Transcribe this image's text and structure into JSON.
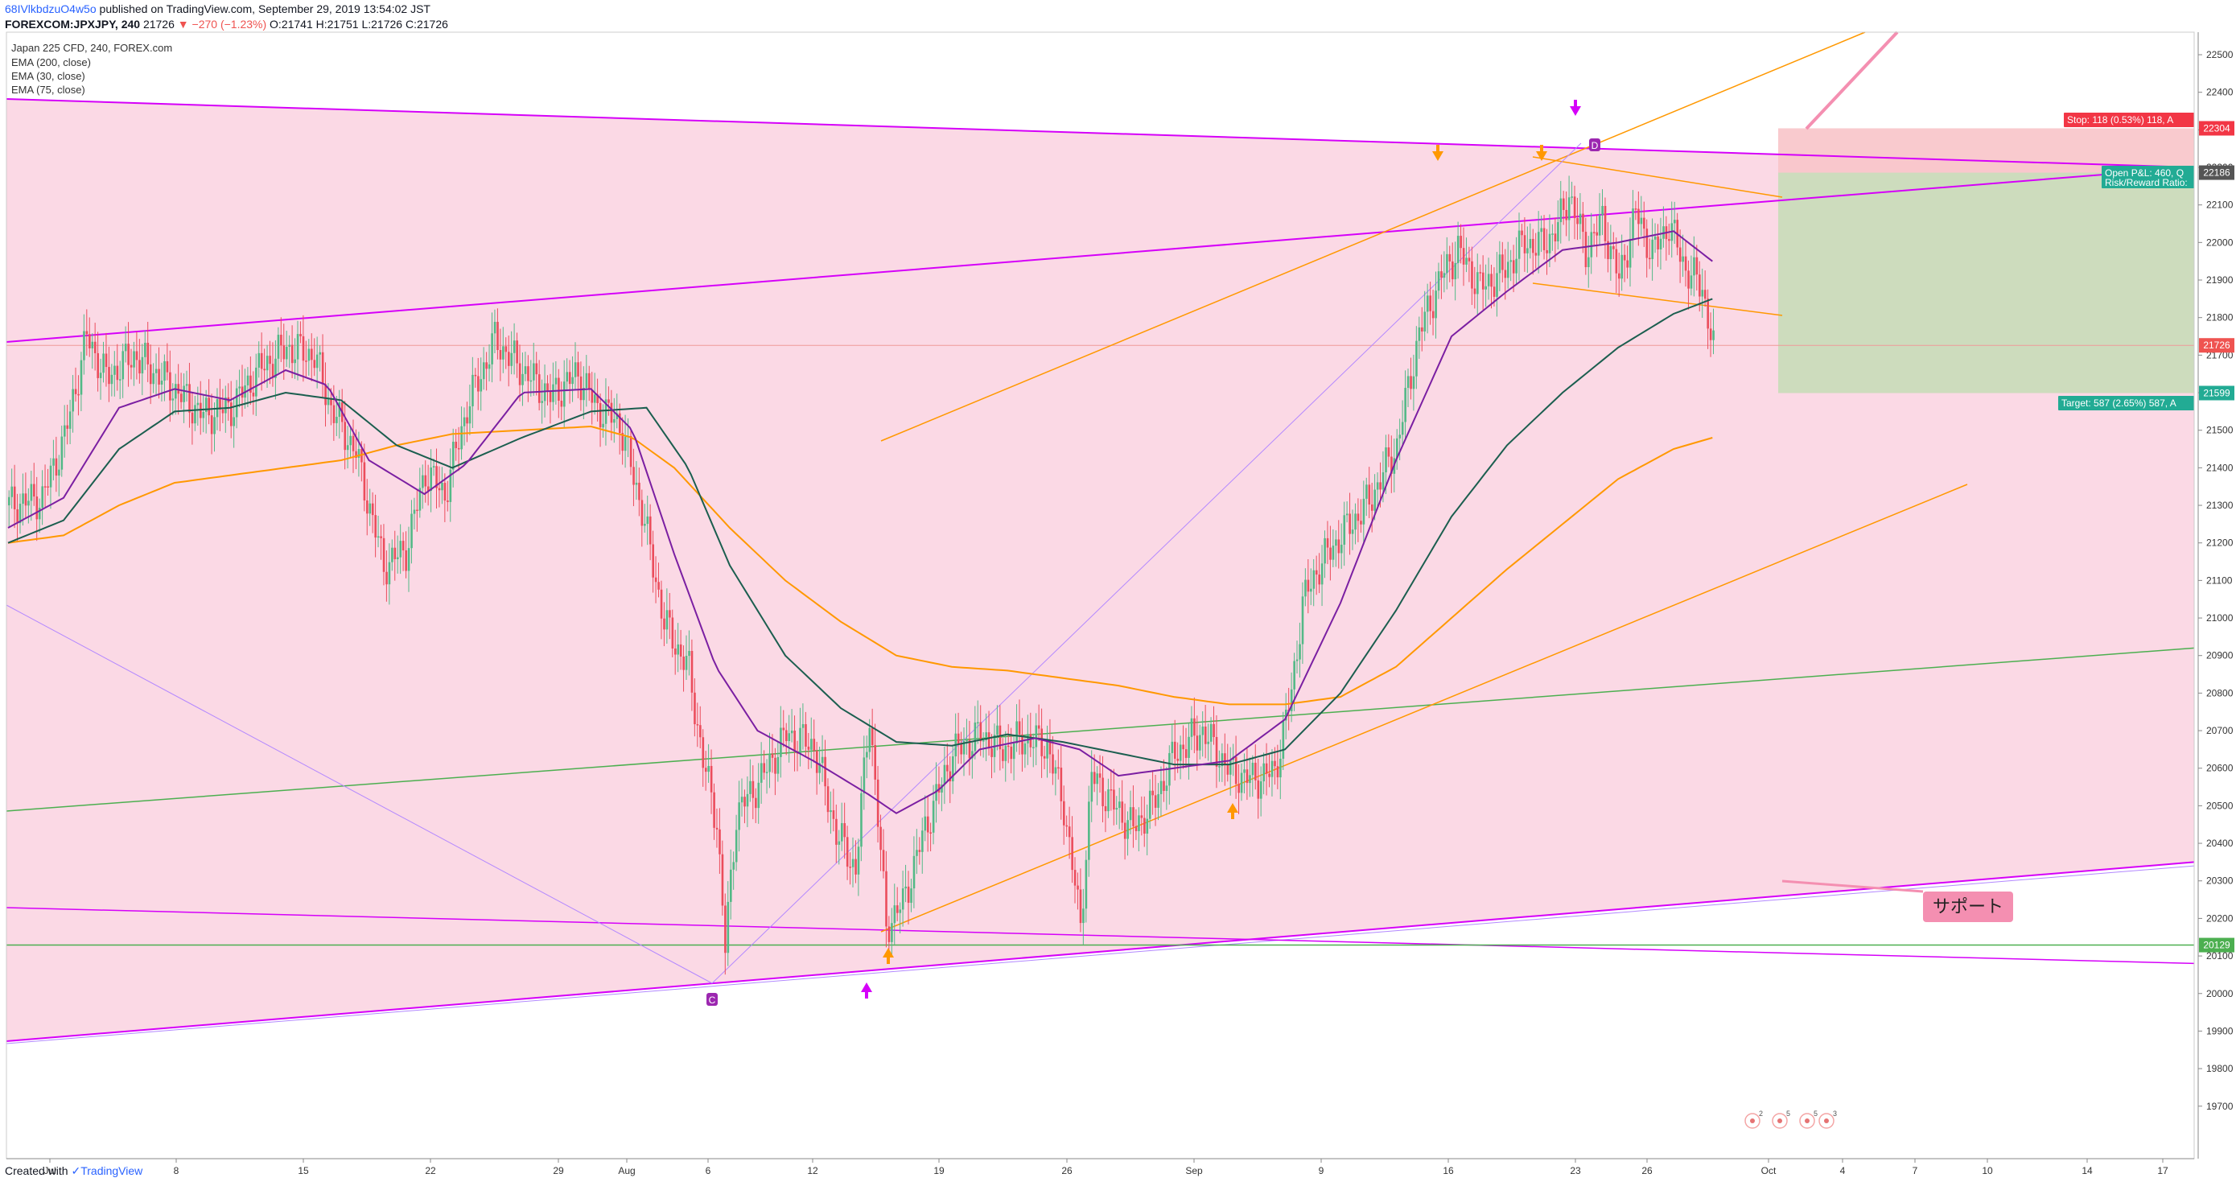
{
  "header": {
    "user": "68IVlkbdzuO4w5o",
    "published": "published on TradingView.com, September 29, 2019 13:54:02 JST",
    "symbol_line": "FOREXCOM:JPXJPY, 240",
    "last": "21726",
    "change": "−270 (−1.23%)",
    "ohlc": "O:21741 H:21751 L:21726 C:21726"
  },
  "legend": {
    "title": "Japan 225 CFD, 240, FOREX.com",
    "ema200": "EMA (200, close)",
    "ema30": "EMA (30, close)",
    "ema75": "EMA (75, close)"
  },
  "footer": {
    "created": "Created with",
    "brand": "TradingView"
  },
  "colors": {
    "up": "#26a69a",
    "down": "#ef5350",
    "bull_candle": "#53b987",
    "bear_candle": "#eb4d5c",
    "pink_zone": "#fbd9e5",
    "magenta": "#d500f9",
    "orange": "#ff9800",
    "green_line": "#4caf50",
    "ema30": "#7b1fa2",
    "ema75": "#1b5e4f",
    "ema200": "#ff9800",
    "stop_zone": "#f8c4c9",
    "target_zone": "#c8dcb8",
    "label_pink": "#f48fb1"
  },
  "chart_data": {
    "type": "candlestick",
    "symbol": "JPXJPY",
    "interval": "240",
    "ylim": [
      19650,
      22550
    ],
    "x_ticks": [
      "Jul",
      "8",
      "15",
      "22",
      "29",
      "Aug",
      "6",
      "12",
      "19",
      "26",
      "Sep",
      "9",
      "16",
      "23",
      "26",
      "Oct",
      "4",
      "7",
      "10",
      "14",
      "17"
    ],
    "y_ticks": [
      22500,
      22400,
      22300,
      22200,
      22100,
      22000,
      21900,
      21800,
      21700,
      21600,
      21500,
      21400,
      21300,
      21200,
      21100,
      21000,
      20900,
      20800,
      20700,
      20600,
      20500,
      20400,
      20300,
      20200,
      20100,
      20000,
      19900,
      19800,
      19700
    ],
    "anchors": [
      [
        0,
        21300
      ],
      [
        12,
        21320
      ],
      [
        20,
        21480
      ],
      [
        28,
        21750
      ],
      [
        35,
        21640
      ],
      [
        45,
        21700
      ],
      [
        55,
        21640
      ],
      [
        70,
        21540
      ],
      [
        80,
        21560
      ],
      [
        90,
        21660
      ],
      [
        100,
        21720
      ],
      [
        110,
        21700
      ],
      [
        116,
        21560
      ],
      [
        125,
        21440
      ],
      [
        135,
        21140
      ],
      [
        143,
        21180
      ],
      [
        150,
        21390
      ],
      [
        157,
        21330
      ],
      [
        165,
        21560
      ],
      [
        175,
        21740
      ],
      [
        185,
        21660
      ],
      [
        195,
        21590
      ],
      [
        205,
        21650
      ],
      [
        212,
        21560
      ],
      [
        220,
        21520
      ],
      [
        228,
        21290
      ],
      [
        236,
        20990
      ],
      [
        245,
        20860
      ],
      [
        250,
        20620
      ],
      [
        255,
        20460
      ],
      [
        258,
        20120
      ],
      [
        262,
        20480
      ],
      [
        270,
        20560
      ],
      [
        280,
        20690
      ],
      [
        290,
        20660
      ],
      [
        298,
        20430
      ],
      [
        305,
        20330
      ],
      [
        310,
        20750
      ],
      [
        316,
        20180
      ],
      [
        322,
        20240
      ],
      [
        330,
        20440
      ],
      [
        340,
        20640
      ],
      [
        350,
        20690
      ],
      [
        358,
        20650
      ],
      [
        366,
        20680
      ],
      [
        374,
        20660
      ],
      [
        380,
        20500
      ],
      [
        386,
        20180
      ],
      [
        390,
        20580
      ],
      [
        398,
        20500
      ],
      [
        405,
        20440
      ],
      [
        412,
        20500
      ],
      [
        420,
        20640
      ],
      [
        430,
        20700
      ],
      [
        440,
        20590
      ],
      [
        448,
        20570
      ],
      [
        456,
        20590
      ],
      [
        462,
        20800
      ],
      [
        466,
        21040
      ],
      [
        472,
        21140
      ],
      [
        480,
        21220
      ],
      [
        490,
        21310
      ],
      [
        500,
        21460
      ],
      [
        508,
        21760
      ],
      [
        516,
        21910
      ],
      [
        522,
        21980
      ],
      [
        530,
        21880
      ],
      [
        538,
        21920
      ],
      [
        546,
        22000
      ],
      [
        552,
        21990
      ],
      [
        558,
        22040
      ],
      [
        562,
        22130
      ],
      [
        568,
        21980
      ],
      [
        574,
        22060
      ],
      [
        580,
        21900
      ],
      [
        586,
        22080
      ],
      [
        592,
        21970
      ],
      [
        598,
        22050
      ],
      [
        604,
        21930
      ],
      [
        610,
        21880
      ],
      [
        614,
        21720
      ]
    ],
    "ema30_anchors": [
      [
        0,
        21240
      ],
      [
        20,
        21320
      ],
      [
        40,
        21560
      ],
      [
        60,
        21610
      ],
      [
        80,
        21580
      ],
      [
        100,
        21660
      ],
      [
        115,
        21620
      ],
      [
        130,
        21420
      ],
      [
        150,
        21330
      ],
      [
        165,
        21410
      ],
      [
        185,
        21600
      ],
      [
        210,
        21610
      ],
      [
        225,
        21500
      ],
      [
        240,
        21170
      ],
      [
        255,
        20870
      ],
      [
        270,
        20700
      ],
      [
        290,
        20620
      ],
      [
        310,
        20530
      ],
      [
        320,
        20480
      ],
      [
        335,
        20540
      ],
      [
        350,
        20650
      ],
      [
        370,
        20680
      ],
      [
        386,
        20650
      ],
      [
        400,
        20580
      ],
      [
        420,
        20600
      ],
      [
        440,
        20620
      ],
      [
        460,
        20730
      ],
      [
        480,
        21040
      ],
      [
        500,
        21420
      ],
      [
        520,
        21750
      ],
      [
        540,
        21870
      ],
      [
        560,
        21980
      ],
      [
        580,
        22000
      ],
      [
        600,
        22030
      ],
      [
        614,
        21950
      ]
    ],
    "ema75_anchors": [
      [
        0,
        21200
      ],
      [
        20,
        21260
      ],
      [
        40,
        21450
      ],
      [
        60,
        21550
      ],
      [
        80,
        21560
      ],
      [
        100,
        21600
      ],
      [
        120,
        21580
      ],
      [
        140,
        21460
      ],
      [
        160,
        21400
      ],
      [
        185,
        21480
      ],
      [
        210,
        21550
      ],
      [
        230,
        21560
      ],
      [
        245,
        21400
      ],
      [
        260,
        21140
      ],
      [
        280,
        20900
      ],
      [
        300,
        20760
      ],
      [
        320,
        20670
      ],
      [
        340,
        20660
      ],
      [
        360,
        20690
      ],
      [
        380,
        20670
      ],
      [
        400,
        20640
      ],
      [
        420,
        20610
      ],
      [
        440,
        20610
      ],
      [
        460,
        20650
      ],
      [
        480,
        20800
      ],
      [
        500,
        21020
      ],
      [
        520,
        21270
      ],
      [
        540,
        21460
      ],
      [
        560,
        21600
      ],
      [
        580,
        21720
      ],
      [
        600,
        21810
      ],
      [
        614,
        21850
      ]
    ],
    "ema200_anchors": [
      [
        0,
        21200
      ],
      [
        20,
        21220
      ],
      [
        40,
        21300
      ],
      [
        60,
        21360
      ],
      [
        80,
        21380
      ],
      [
        100,
        21400
      ],
      [
        120,
        21420
      ],
      [
        140,
        21460
      ],
      [
        160,
        21490
      ],
      [
        185,
        21500
      ],
      [
        210,
        21510
      ],
      [
        225,
        21480
      ],
      [
        240,
        21400
      ],
      [
        260,
        21240
      ],
      [
        280,
        21100
      ],
      [
        300,
        20990
      ],
      [
        320,
        20900
      ],
      [
        340,
        20870
      ],
      [
        360,
        20860
      ],
      [
        380,
        20840
      ],
      [
        400,
        20820
      ],
      [
        420,
        20790
      ],
      [
        440,
        20770
      ],
      [
        460,
        20770
      ],
      [
        480,
        20790
      ],
      [
        500,
        20870
      ],
      [
        520,
        21000
      ],
      [
        540,
        21130
      ],
      [
        560,
        21250
      ],
      [
        580,
        21370
      ],
      [
        600,
        21450
      ],
      [
        614,
        21480
      ]
    ],
    "price_tags": [
      {
        "value": 22304,
        "label": "22304",
        "color": "#f23645"
      },
      {
        "value": 22186,
        "label": "22186",
        "color": "#555555"
      },
      {
        "value": 21726,
        "label": "21726",
        "color": "#ef5350"
      },
      {
        "value": 21599,
        "label": "21599",
        "color": "#22ab94"
      },
      {
        "value": 20129,
        "label": "20129",
        "color": "#4caf50"
      }
    ],
    "position": {
      "stop_label": "Stop: 118 (0.53%) 118, A",
      "open_label_1": "Open P&L: 460, Q",
      "open_label_2": "Risk/Reward Ratio:",
      "target_label": "Target: 587 (2.65%) 587, A"
    },
    "annotations": {
      "support": "サポート",
      "point_c": "C",
      "point_d": "D"
    },
    "dd_badges": {
      "b1": "2",
      "b2": "5",
      "b3": "3"
    }
  }
}
